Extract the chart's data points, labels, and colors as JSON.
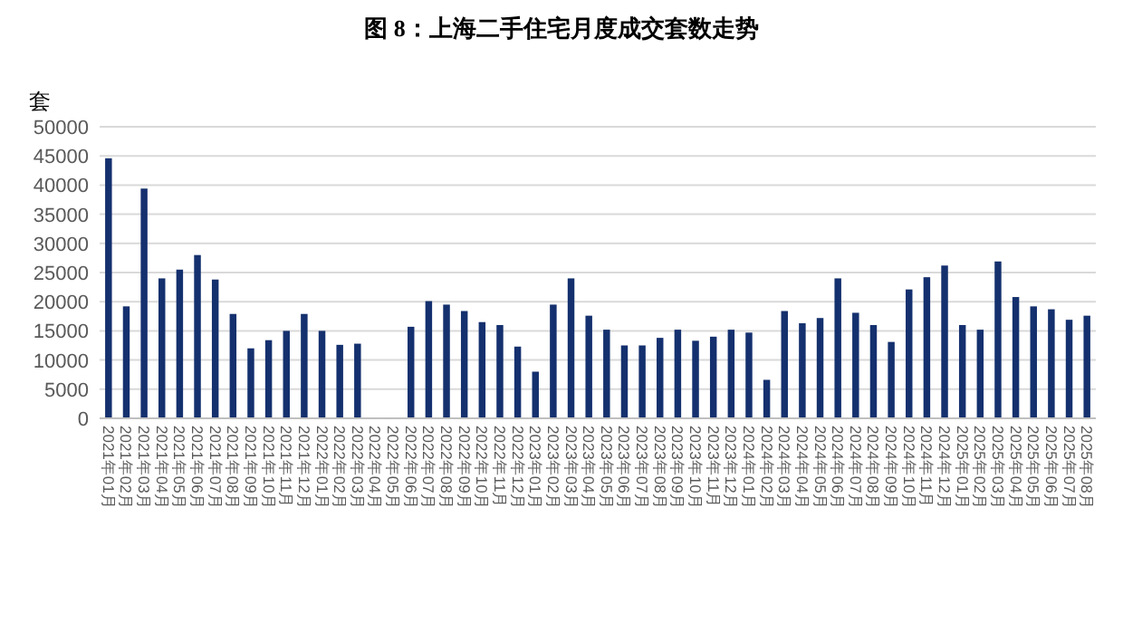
{
  "chart_data": {
    "type": "bar",
    "title": "图 8：上海二手住宅月度成交套数走势",
    "ylabel": "套",
    "categories": [
      "2021年01月",
      "2021年02月",
      "2021年03月",
      "2021年04月",
      "2021年05月",
      "2021年06月",
      "2021年07月",
      "2021年08月",
      "2021年09月",
      "2021年10月",
      "2021年11月",
      "2021年12月",
      "2022年01月",
      "2022年02月",
      "2022年03月",
      "2022年04月",
      "2022年05月",
      "2022年06月",
      "2022年07月",
      "2022年08月",
      "2022年09月",
      "2022年10月",
      "2022年11月",
      "2022年12月",
      "2023年01月",
      "2023年02月",
      "2023年03月",
      "2023年04月",
      "2023年05月",
      "2023年06月",
      "2023年07月",
      "2023年08月",
      "2023年09月",
      "2023年10月",
      "2023年11月",
      "2023年12月",
      "2024年01月",
      "2024年02月",
      "2024年03月",
      "2024年04月",
      "2024年05月",
      "2024年06月",
      "2024年07月",
      "2024年08月",
      "2024年09月",
      "2024年10月",
      "2024年11月",
      "2024年12月",
      "2025年01月",
      "2025年02月",
      "2025年03月",
      "2025年04月",
      "2025年05月",
      "2025年06月",
      "2025年07月",
      "2025年08月"
    ],
    "values": [
      44600,
      19200,
      39400,
      24000,
      25500,
      28000,
      23800,
      17900,
      12000,
      13400,
      15000,
      17900,
      15000,
      12600,
      12800,
      null,
      null,
      15700,
      20100,
      19500,
      18400,
      16500,
      16000,
      12300,
      8000,
      19500,
      24000,
      17600,
      15200,
      12500,
      12500,
      13800,
      15200,
      13300,
      14000,
      15200,
      14700,
      6600,
      18400,
      16300,
      17200,
      24000,
      18100,
      16000,
      13100,
      22100,
      24200,
      26200,
      16000,
      15200,
      26900,
      20800,
      19200,
      18700,
      16900,
      17600
    ],
    "color": "#14306e",
    "ylim": [
      0,
      50000
    ],
    "yticks": [
      0,
      5000,
      10000,
      15000,
      20000,
      25000,
      30000,
      35000,
      40000,
      45000,
      50000
    ],
    "grid": true
  }
}
